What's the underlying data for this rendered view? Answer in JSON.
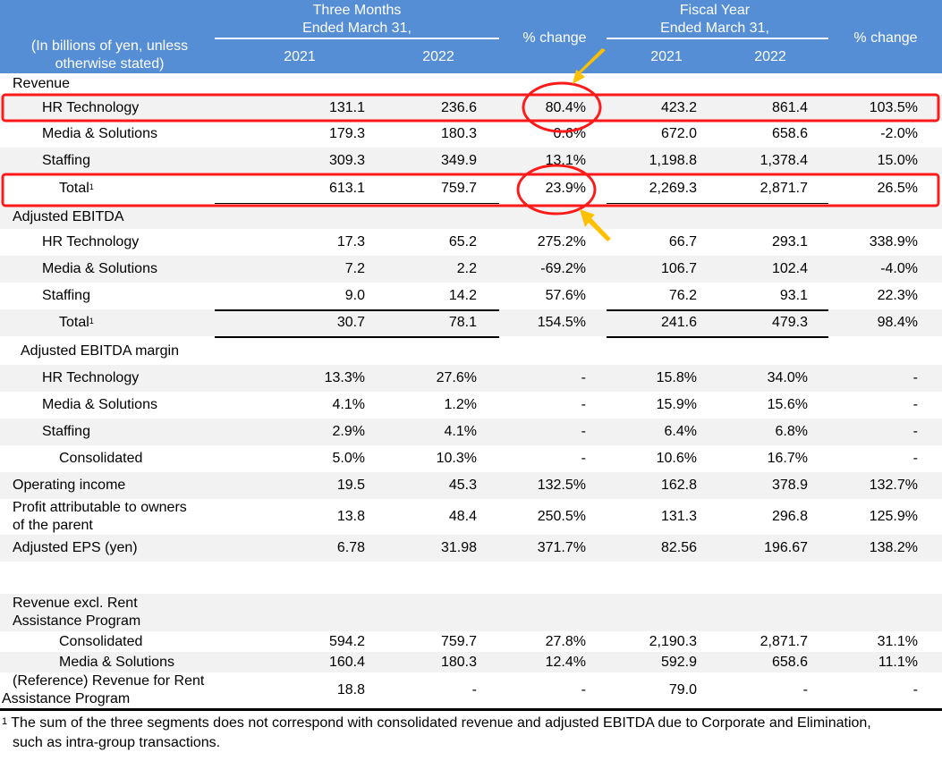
{
  "header": {
    "unit_label_line1": "(In billions of yen, unless",
    "unit_label_line2": "otherwise stated)",
    "three_months_line1": "Three Months",
    "three_months_line2": "Ended March 31,",
    "fiscal_year_line1": "Fiscal Year",
    "fiscal_year_line2": "Ended March 31,",
    "pct_change": "% change",
    "y2021": "2021",
    "y2022": "2022"
  },
  "colors": {
    "header_bg": "#558ed5",
    "shade_row": "#f2f2f2",
    "highlight_red": "#ff1a1a",
    "arrow_yellow": "#ffc000"
  },
  "rows": [
    {
      "label": "Revenue",
      "values": [
        "",
        "",
        "",
        "",
        "",
        ""
      ]
    },
    {
      "label": "HR Technology",
      "values": [
        "131.1",
        "236.6",
        "80.4%",
        "423.2",
        "861.4",
        "103.5%"
      ]
    },
    {
      "label": "Media & Solutions",
      "values": [
        "179.3",
        "180.3",
        "0.6%",
        "672.0",
        "658.6",
        "-2.0%"
      ]
    },
    {
      "label": "Staffing",
      "values": [
        "309.3",
        "349.9",
        "13.1%",
        "1,198.8",
        "1,378.4",
        "15.0%"
      ]
    },
    {
      "label": "Total",
      "footnote": "1",
      "values": [
        "613.1",
        "759.7",
        "23.9%",
        "2,269.3",
        "2,871.7",
        "26.5%"
      ]
    },
    {
      "label": "Adjusted EBITDA",
      "values": [
        "",
        "",
        "",
        "",
        "",
        ""
      ]
    },
    {
      "label": "HR Technology",
      "values": [
        "17.3",
        "65.2",
        "275.2%",
        "66.7",
        "293.1",
        "338.9%"
      ]
    },
    {
      "label": "Media & Solutions",
      "values": [
        "7.2",
        "2.2",
        "-69.2%",
        "106.7",
        "102.4",
        "-4.0%"
      ]
    },
    {
      "label": "Staffing",
      "values": [
        "9.0",
        "14.2",
        "57.6%",
        "76.2",
        "93.1",
        "22.3%"
      ]
    },
    {
      "label": "Total",
      "footnote": "1",
      "values": [
        "30.7",
        "78.1",
        "154.5%",
        "241.6",
        "479.3",
        "98.4%"
      ]
    },
    {
      "label": "Adjusted EBITDA margin",
      "values": [
        "",
        "",
        "",
        "",
        "",
        ""
      ]
    },
    {
      "label": "HR Technology",
      "values": [
        "13.3%",
        "27.6%",
        "-",
        "15.8%",
        "34.0%",
        "-"
      ]
    },
    {
      "label": "Media & Solutions",
      "values": [
        "4.1%",
        "1.2%",
        "-",
        "15.9%",
        "15.6%",
        "-"
      ]
    },
    {
      "label": "Staffing",
      "values": [
        "2.9%",
        "4.1%",
        "-",
        "6.4%",
        "6.8%",
        "-"
      ]
    },
    {
      "label": "Consolidated",
      "values": [
        "5.0%",
        "10.3%",
        "-",
        "10.6%",
        "16.7%",
        "-"
      ]
    },
    {
      "label": "Operating income",
      "values": [
        "19.5",
        "45.3",
        "132.5%",
        "162.8",
        "378.9",
        "132.7%"
      ]
    },
    {
      "label": "Profit attributable to owners",
      "label2": "of the parent",
      "values": [
        "13.8",
        "48.4",
        "250.5%",
        "131.3",
        "296.8",
        "125.9%"
      ]
    },
    {
      "label": "Adjusted EPS (yen)",
      "values": [
        "6.78",
        "31.98",
        "371.7%",
        "82.56",
        "196.67",
        "138.2%"
      ]
    },
    {
      "label": "",
      "values": [
        "",
        "",
        "",
        "",
        "",
        ""
      ]
    },
    {
      "label": "Revenue excl. Rent",
      "label2": "Assistance Program",
      "values": [
        "",
        "",
        "",
        "",
        "",
        ""
      ]
    },
    {
      "label": "Consolidated",
      "values": [
        "594.2",
        "759.7",
        "27.8%",
        "2,190.3",
        "2,871.7",
        "31.1%"
      ]
    },
    {
      "label": "Media & Solutions",
      "values": [
        "160.4",
        "180.3",
        "12.4%",
        "592.9",
        "658.6",
        "11.1%"
      ]
    },
    {
      "label": "(Reference) Revenue for Rent",
      "label2": "Assistance Program",
      "values": [
        "18.8",
        "-",
        "-",
        "79.0",
        "-",
        "-"
      ]
    }
  ],
  "footnote": {
    "marker": "1",
    "line1": "The sum of the three segments does not correspond with consolidated revenue and adjusted EBITDA due to Corporate and Elimination,",
    "line2": "such as intra-group transactions."
  }
}
